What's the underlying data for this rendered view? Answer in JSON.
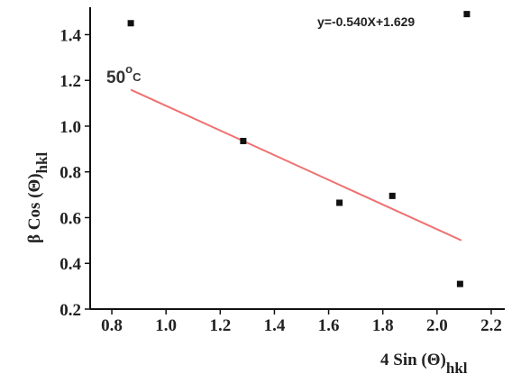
{
  "chart_data": {
    "type": "scatter",
    "title": "",
    "xlabel": {
      "main": "4 Sin (Θ)",
      "sub": "hkl"
    },
    "ylabel": {
      "main": "β Cos (Θ)",
      "sub": "hkl"
    },
    "xlim": [
      0.72,
      2.25
    ],
    "ylim": [
      0.2,
      1.52
    ],
    "x_ticks": [
      0.8,
      1.0,
      1.2,
      1.4,
      1.6,
      1.8,
      2.0,
      2.2
    ],
    "x_tick_labels": [
      "0.8",
      "1.0",
      "1.2",
      "1.4",
      "1.6",
      "1.8",
      "2.0",
      "2.2"
    ],
    "y_ticks": [
      0.2,
      0.4,
      0.6,
      0.8,
      1.0,
      1.2,
      1.4
    ],
    "y_tick_labels": [
      "0.2",
      "0.4",
      "0.6",
      "0.8",
      "1.0",
      "1.2",
      "1.4"
    ],
    "grid": false,
    "series": [
      {
        "points": [
          {
            "x": 0.87,
            "y": 1.45
          },
          {
            "x": 1.285,
            "y": 0.935
          },
          {
            "x": 1.64,
            "y": 0.665
          },
          {
            "x": 1.835,
            "y": 0.695
          },
          {
            "x": 2.085,
            "y": 0.31
          },
          {
            "x": 2.11,
            "y": 1.49
          }
        ],
        "color": "#111111",
        "marker": "square"
      }
    ],
    "fit_line": {
      "equation": "y=-0.540X+1.629",
      "slope": -0.54,
      "intercept": 1.629,
      "x_range": [
        0.87,
        2.09
      ],
      "color": "#f07070"
    },
    "annotation": {
      "text": "50",
      "superscript": "o",
      "unit": "C"
    }
  }
}
